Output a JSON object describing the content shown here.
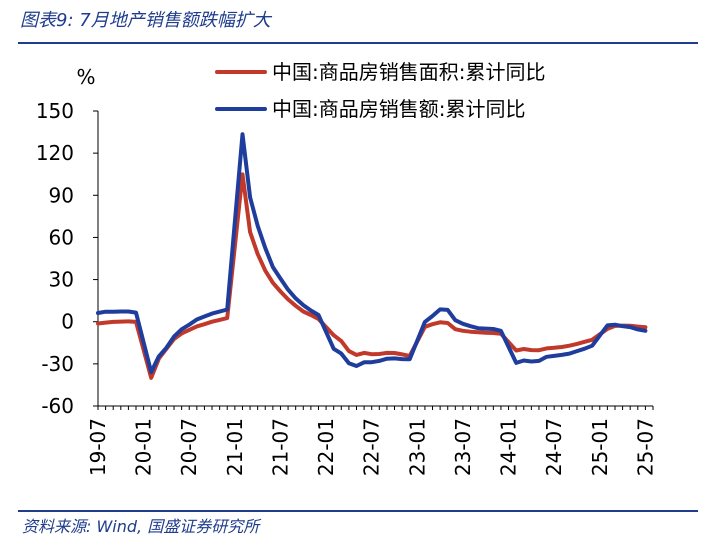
{
  "figure_title": "图表9:  7月地产销售额跌幅扩大",
  "source_note": "资料来源:  Wind,  国盛证券研究所",
  "chart_data": {
    "type": "line",
    "ylabel": "%",
    "ylim": [
      -60,
      150
    ],
    "yticks": [
      -60,
      -30,
      0,
      30,
      60,
      90,
      120,
      150
    ],
    "xlim": [
      "2019-07",
      "2025-08"
    ],
    "xticks": [
      "19-07",
      "20-01",
      "20-07",
      "21-01",
      "21-07",
      "22-01",
      "22-07",
      "23-01",
      "23-07",
      "24-01",
      "24-07",
      "25-01",
      "25-07"
    ],
    "grid": false,
    "legend_position": "top-right",
    "series": [
      {
        "name": "中国:商品房销售面积:累计同比",
        "color": "#c0392b",
        "points": [
          [
            "2019-07",
            -1.3
          ],
          [
            "2019-08",
            -0.6
          ],
          [
            "2019-09",
            -0.1
          ],
          [
            "2019-10",
            0.1
          ],
          [
            "2019-11",
            0.2
          ],
          [
            "2019-12",
            -0.1
          ],
          [
            "2020-02",
            -39.9
          ],
          [
            "2020-03",
            -26.3
          ],
          [
            "2020-04",
            -19.3
          ],
          [
            "2020-05",
            -12.3
          ],
          [
            "2020-06",
            -8.4
          ],
          [
            "2020-07",
            -5.8
          ],
          [
            "2020-08",
            -3.3
          ],
          [
            "2020-09",
            -1.8
          ],
          [
            "2020-10",
            0.0
          ],
          [
            "2020-11",
            1.3
          ],
          [
            "2020-12",
            2.6
          ],
          [
            "2021-02",
            104.9
          ],
          [
            "2021-03",
            63.8
          ],
          [
            "2021-04",
            48.1
          ],
          [
            "2021-05",
            36.3
          ],
          [
            "2021-06",
            27.7
          ],
          [
            "2021-07",
            21.5
          ],
          [
            "2021-08",
            15.9
          ],
          [
            "2021-09",
            11.3
          ],
          [
            "2021-10",
            7.3
          ],
          [
            "2021-11",
            4.8
          ],
          [
            "2021-12",
            1.9
          ],
          [
            "2022-02",
            -9.6
          ],
          [
            "2022-03",
            -13.8
          ],
          [
            "2022-04",
            -20.9
          ],
          [
            "2022-05",
            -23.6
          ],
          [
            "2022-06",
            -22.2
          ],
          [
            "2022-07",
            -23.1
          ],
          [
            "2022-08",
            -23.0
          ],
          [
            "2022-09",
            -22.2
          ],
          [
            "2022-10",
            -22.3
          ],
          [
            "2022-11",
            -23.3
          ],
          [
            "2022-12",
            -24.3
          ],
          [
            "2023-02",
            -3.6
          ],
          [
            "2023-03",
            -1.8
          ],
          [
            "2023-04",
            -0.4
          ],
          [
            "2023-05",
            -0.9
          ],
          [
            "2023-06",
            -5.3
          ],
          [
            "2023-07",
            -6.5
          ],
          [
            "2023-08",
            -7.1
          ],
          [
            "2023-09",
            -7.5
          ],
          [
            "2023-10",
            -7.8
          ],
          [
            "2023-11",
            -8.0
          ],
          [
            "2023-12",
            -8.5
          ],
          [
            "2024-02",
            -20.5
          ],
          [
            "2024-03",
            -19.4
          ],
          [
            "2024-04",
            -20.2
          ],
          [
            "2024-05",
            -20.3
          ],
          [
            "2024-06",
            -19.0
          ],
          [
            "2024-07",
            -18.6
          ],
          [
            "2024-08",
            -18.0
          ],
          [
            "2024-09",
            -17.1
          ],
          [
            "2024-10",
            -15.8
          ],
          [
            "2024-11",
            -14.3
          ],
          [
            "2024-12",
            -12.9
          ],
          [
            "2025-02",
            -5.1
          ],
          [
            "2025-03",
            -3.0
          ],
          [
            "2025-04",
            -2.8
          ],
          [
            "2025-05",
            -2.9
          ],
          [
            "2025-06",
            -3.5
          ],
          [
            "2025-07",
            -4.0
          ]
        ]
      },
      {
        "name": "中国:商品房销售额:累计同比",
        "color": "#1f3d9c",
        "points": [
          [
            "2019-07",
            6.2
          ],
          [
            "2019-08",
            7.1
          ],
          [
            "2019-09",
            7.1
          ],
          [
            "2019-10",
            7.3
          ],
          [
            "2019-11",
            7.3
          ],
          [
            "2019-12",
            6.5
          ],
          [
            "2020-02",
            -35.9
          ],
          [
            "2020-03",
            -24.7
          ],
          [
            "2020-04",
            -18.6
          ],
          [
            "2020-05",
            -10.6
          ],
          [
            "2020-06",
            -5.4
          ],
          [
            "2020-07",
            -2.1
          ],
          [
            "2020-08",
            1.6
          ],
          [
            "2020-09",
            3.7
          ],
          [
            "2020-10",
            5.8
          ],
          [
            "2020-11",
            7.2
          ],
          [
            "2020-12",
            8.7
          ],
          [
            "2021-02",
            133.4
          ],
          [
            "2021-03",
            88.5
          ],
          [
            "2021-04",
            68.2
          ],
          [
            "2021-05",
            52.4
          ],
          [
            "2021-06",
            38.9
          ],
          [
            "2021-07",
            30.7
          ],
          [
            "2021-08",
            22.8
          ],
          [
            "2021-09",
            16.6
          ],
          [
            "2021-10",
            11.8
          ],
          [
            "2021-11",
            8.0
          ],
          [
            "2021-12",
            4.8
          ],
          [
            "2022-02",
            -19.3
          ],
          [
            "2022-03",
            -22.7
          ],
          [
            "2022-04",
            -29.5
          ],
          [
            "2022-05",
            -31.5
          ],
          [
            "2022-06",
            -28.9
          ],
          [
            "2022-07",
            -28.8
          ],
          [
            "2022-08",
            -27.9
          ],
          [
            "2022-09",
            -26.3
          ],
          [
            "2022-10",
            -26.1
          ],
          [
            "2022-11",
            -26.6
          ],
          [
            "2022-12",
            -26.7
          ],
          [
            "2023-02",
            -0.1
          ],
          [
            "2023-03",
            4.1
          ],
          [
            "2023-04",
            8.8
          ],
          [
            "2023-05",
            8.4
          ],
          [
            "2023-06",
            1.1
          ],
          [
            "2023-07",
            -1.5
          ],
          [
            "2023-08",
            -3.2
          ],
          [
            "2023-09",
            -4.6
          ],
          [
            "2023-10",
            -4.9
          ],
          [
            "2023-11",
            -5.2
          ],
          [
            "2023-12",
            -6.5
          ],
          [
            "2024-02",
            -29.3
          ],
          [
            "2024-03",
            -27.6
          ],
          [
            "2024-04",
            -28.3
          ],
          [
            "2024-05",
            -27.9
          ],
          [
            "2024-06",
            -25.0
          ],
          [
            "2024-07",
            -24.3
          ],
          [
            "2024-08",
            -23.6
          ],
          [
            "2024-09",
            -22.7
          ],
          [
            "2024-10",
            -20.9
          ],
          [
            "2024-11",
            -19.2
          ],
          [
            "2024-12",
            -17.1
          ],
          [
            "2025-02",
            -2.6
          ],
          [
            "2025-03",
            -2.1
          ],
          [
            "2025-04",
            -3.2
          ],
          [
            "2025-05",
            -3.8
          ],
          [
            "2025-06",
            -5.5
          ],
          [
            "2025-07",
            -6.5
          ]
        ]
      }
    ]
  }
}
